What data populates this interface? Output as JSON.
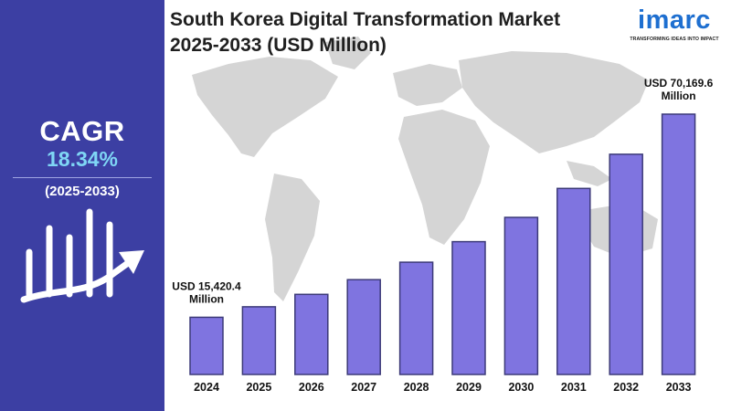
{
  "header": {
    "title_line1": "South Korea Digital Transformation Market",
    "title_line2": "2025-2033 (USD Million)"
  },
  "brand": {
    "name": "imarc",
    "tagline": "TRANSFORMING IDEAS INTO IMPACT",
    "color": "#1e6fd0"
  },
  "cagr": {
    "label": "CAGR",
    "value": "18.34%",
    "period": "(2025-2033)"
  },
  "colors": {
    "panel": "#3c3fa3",
    "bar": "#7f74e0",
    "bar_edge": "#3c3a78",
    "cagr_value": "#7fd6f5"
  },
  "chart_data": {
    "type": "bar",
    "title": "South Korea Digital Transformation Market 2025-2033 (USD Million)",
    "xlabel": "",
    "ylabel": "",
    "categories": [
      "2024",
      "2025",
      "2026",
      "2027",
      "2028",
      "2029",
      "2030",
      "2031",
      "2032",
      "2033"
    ],
    "values": [
      15420.4,
      18250,
      21600,
      25550,
      30250,
      35800,
      42350,
      50150,
      59350,
      70169.6
    ],
    "annotations": [
      {
        "category": "2024",
        "line1": "USD 15,420.4",
        "line2": "Million"
      },
      {
        "category": "2033",
        "line1": "USD 70,169.6",
        "line2": "Million"
      }
    ],
    "grid": false,
    "legend": "none",
    "ylim": [
      0,
      70169.6
    ]
  }
}
